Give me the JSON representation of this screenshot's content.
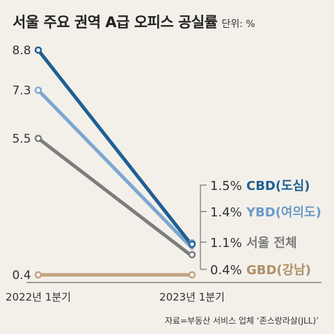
{
  "title": "서울 주요 권역 A급 오피스 공실률",
  "unit_label": "단위: %",
  "source": "자료=부동산 서비스 업체 ‘존스랑라살(JLL)’",
  "chart_data": {
    "type": "line",
    "title": "서울 주요 권역 A급 오피스 공실률",
    "unit": "%",
    "x": [
      "2022년 1분기",
      "2023년 1분기"
    ],
    "series": [
      {
        "name": "CBD(도심)",
        "values": [
          8.8,
          1.5
        ],
        "color": "#1f5f94",
        "label_color": "#1f5f94"
      },
      {
        "name": "YBD(여의도)",
        "values": [
          7.3,
          1.4
        ],
        "color": "#7ea6d0",
        "label_color": "#6d9ac8"
      },
      {
        "name": "서울 전체",
        "values": [
          5.5,
          1.1
        ],
        "color": "#7d7d7d",
        "label_color": "#7a7a7a"
      },
      {
        "name": "GBD(강남)",
        "values": [
          0.4,
          0.4
        ],
        "color": "#c1a27f",
        "label_color": "#b08f68"
      }
    ],
    "start_labels": [
      "8.8",
      "7.3",
      "5.5",
      "0.4"
    ],
    "end_labels": [
      "1.5%",
      "1.4%",
      "1.1%",
      "0.4%"
    ],
    "grid": false,
    "legend": "direct labels at right end"
  }
}
